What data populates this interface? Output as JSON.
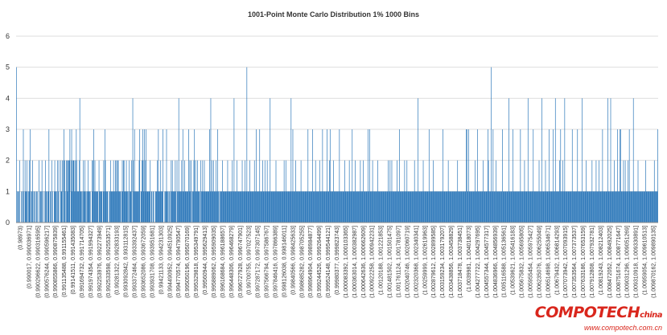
{
  "chart_data": {
    "type": "bar",
    "title": "1001-Point Monte Carlo Distribution 1% 1000 Bins",
    "xlabel": "",
    "ylabel": "",
    "ylim": [
      0,
      6
    ],
    "yticks": [
      0,
      1,
      2,
      3,
      4,
      5,
      6
    ],
    "grid": true,
    "legend": "none",
    "bar_color": "#1f6fb5",
    "bins": 1000,
    "xtick_labels": [
      "(0.98973)",
      "(0.990017, 0.990036971]",
      "(0.990296622, 0.990316595]",
      "(0.990576244, 0.990596217]",
      "(0.990855866, 0.990875839]",
      "(0.991135488, 0.991155461]",
      "(0.99141511, 0.991435083]",
      "(0.991694732, 0.991714705]",
      "(0.991974354, 0.991994327]",
      "(0.992253976, 0.992273949]",
      "(0.992533598, 0.992553571]",
      "(0.99281322, 0.992833193]",
      "(0.993092842, 0.993112815]",
      "(0.993372464, 0.993392437]",
      "(0.993652086, 0.993672059]",
      "(0.993931708, 0.993951681]",
      "(0.99421133, 0.994231303]",
      "(0.994490952, 0.994510925]",
      "(0.994770574, 0.994790547]",
      "(0.995050196, 0.995070169]",
      "(0.995329818, 0.995349791]",
      "(0.99560944, 0.995629413]",
      "(0.995889062, 0.995909035]",
      "(0.996168684, 0.996188657]",
      "(0.996448306, 0.996468279]",
      "(0.996727928, 0.996747901]",
      "(0.99700755, 0.997027523]",
      "(0.997287172, 0.997307145]",
      "(0.997566794, 0.997586767]",
      "(0.997846416, 0.997866389]",
      "(0.998126038, 0.998146011]",
      "(0.99840566, 0.998425633]",
      "(0.998685282, 0.998705255]",
      "(0.998964904, 0.998984877]",
      "(0.999244526, 0.999264499]",
      "(0.999524148, 0.999544121]",
      "(0.99980377, 0.999823743]",
      "(1.000083392, 1.000103365]",
      "(1.000363014, 1.000382987]",
      "(1.000642636, 1.000662609]",
      "(1.000922258, 1.000942231]",
      "(1.00120188, 1.001221853]",
      "(1.001481502, 1.001501475]",
      "(1.001761124, 1.001781097]",
      "(1.002040746, 1.002060719]",
      "(1.002320368, 1.002340341]",
      "(1.00259999, 1.002619963]",
      "(1.002879612, 1.002899585]",
      "(1.003159234, 1.003179207]",
      "(1.003438856, 1.003458829]",
      "(1.003718478, 1.003738451]",
      "(1.0039981, 1.004018073]",
      "(1.004277722, 1.004297695]",
      "(1.004557344, 1.004577317]",
      "(1.004836966, 1.004856939]",
      "(1.005116588, 1.005136561]",
      "(1.00539621, 1.005416183]",
      "(1.005675832, 1.005695805]",
      "(1.005955454, 1.005975427]",
      "(1.006235076, 1.006255049]",
      "(1.006514698, 1.006534671]",
      "(1.00679432, 1.006814293]",
      "(1.007073942, 1.007093915]",
      "(1.007353564, 1.007373537]",
      "(1.007633186, 1.007653159]",
      "(1.007912808, 1.007932781]",
      "(1.00819243, 1.008212403]",
      "(1.008472052, 1.008492025]",
      "(1.008751674, 1.008771647]",
      "(1.009031296, 1.009051269]",
      "(1.009310918, 1.009330891]",
      "(1.00959054, 1.009610513]",
      "(1.009870162, 1.009890135]"
    ],
    "counts": [
      5,
      0,
      1,
      1,
      1,
      0,
      2,
      0,
      0,
      1,
      1,
      0,
      3,
      1,
      0,
      2,
      1,
      1,
      2,
      1,
      0,
      1,
      2,
      1,
      3,
      0,
      1,
      1,
      2,
      0,
      1,
      1,
      0,
      1,
      0,
      1,
      1,
      0,
      0,
      2,
      0,
      1,
      1,
      1,
      2,
      0,
      1,
      0,
      0,
      1,
      2,
      1,
      1,
      0,
      1,
      1,
      3,
      0,
      1,
      1,
      0,
      2,
      1,
      0,
      0,
      1,
      2,
      1,
      1,
      1,
      0,
      2,
      1,
      2,
      0,
      0,
      2,
      1,
      1,
      2,
      0,
      2,
      3,
      2,
      1,
      0,
      2,
      2,
      1,
      2,
      2,
      2,
      3,
      0,
      2,
      3,
      1,
      2,
      2,
      2,
      1,
      2,
      1,
      3,
      2,
      1,
      1,
      1,
      2,
      4,
      1,
      1,
      1,
      0,
      1,
      2,
      1,
      1,
      2,
      1,
      0,
      1,
      1,
      2,
      1,
      1,
      1,
      1,
      0,
      0,
      2,
      1,
      2,
      3,
      1,
      2,
      1,
      1,
      1,
      1,
      1,
      0,
      2,
      1,
      1,
      1,
      1,
      1,
      0,
      1,
      2,
      1,
      3,
      2,
      1,
      1,
      1,
      1,
      0,
      0,
      1,
      1,
      2,
      1,
      1,
      1,
      1,
      2,
      1,
      1,
      2,
      1,
      2,
      1,
      2,
      2,
      1,
      1,
      1,
      1,
      0,
      1,
      2,
      1,
      2,
      2,
      1,
      1,
      1,
      2,
      1,
      1,
      1,
      0,
      2,
      1,
      1,
      1,
      2,
      0,
      4,
      2,
      1,
      3,
      1,
      1,
      1,
      1,
      1,
      1,
      1,
      2,
      3,
      0,
      1,
      1,
      2,
      3,
      2,
      1,
      3,
      1,
      2,
      3,
      1,
      1,
      1,
      1,
      1,
      1,
      2,
      0,
      1,
      1,
      0,
      1,
      1,
      0,
      0,
      1,
      1,
      1,
      2,
      1,
      3,
      1,
      1,
      1,
      2,
      1,
      1,
      1,
      3,
      0,
      0,
      1,
      1,
      1,
      3,
      1,
      1,
      0,
      1,
      1,
      0,
      1,
      2,
      1,
      2,
      1,
      1,
      1,
      1,
      2,
      1,
      0,
      2,
      1,
      1,
      4,
      1,
      1,
      1,
      1,
      2,
      1,
      3,
      1,
      1,
      2,
      1,
      1,
      1,
      1,
      1,
      1,
      3,
      1,
      2,
      1,
      2,
      0,
      1,
      1,
      1,
      2,
      3,
      1,
      2,
      1,
      1,
      2,
      1,
      1,
      1,
      1,
      0,
      2,
      1,
      1,
      2,
      1,
      1,
      2,
      1,
      1,
      1,
      1,
      1,
      1,
      1,
      1,
      3,
      1,
      4,
      1,
      2,
      1,
      1,
      2,
      1,
      1,
      1,
      2,
      1,
      1,
      3,
      1,
      1,
      0,
      1,
      1,
      1,
      1,
      2,
      1,
      1,
      1,
      1,
      1,
      1,
      1,
      1,
      2,
      1,
      1,
      1,
      1,
      1,
      1,
      1,
      2,
      1,
      1,
      4,
      1,
      1,
      1,
      1,
      2,
      1,
      1,
      1,
      1,
      1,
      1,
      1,
      1,
      2,
      1,
      1,
      1,
      1,
      2,
      1,
      1,
      5,
      1,
      1,
      1,
      1,
      2,
      1,
      1,
      1,
      1,
      1,
      1,
      1,
      2,
      1,
      1,
      3,
      1,
      1,
      1,
      1,
      1,
      3,
      1,
      1,
      1,
      1,
      2,
      1,
      1,
      1,
      2,
      1,
      1,
      1,
      2,
      1,
      1,
      1,
      1,
      4,
      1,
      1,
      1,
      1,
      1,
      1,
      1,
      1,
      1,
      2,
      1,
      1,
      1,
      1,
      1,
      1,
      1,
      1,
      1,
      1,
      1,
      1,
      1,
      2,
      1,
      1,
      2,
      1,
      1,
      1,
      1,
      1,
      1,
      1,
      1,
      4,
      1,
      1,
      3,
      1,
      1,
      1,
      1,
      2,
      1,
      1,
      1,
      1,
      1,
      1,
      1,
      1,
      2,
      1,
      1,
      1,
      1,
      1,
      1,
      1,
      1,
      1,
      1,
      1,
      3,
      1,
      1,
      1,
      1,
      1,
      1,
      1,
      3,
      1,
      1,
      1,
      1,
      2,
      1,
      1,
      1,
      1,
      1,
      1,
      2,
      1,
      1,
      1,
      1,
      3,
      1,
      1,
      1,
      1,
      1,
      1,
      1,
      3,
      1,
      1,
      1,
      2,
      3,
      1,
      1,
      1,
      1,
      1,
      2,
      1,
      1,
      1,
      1,
      1,
      1,
      1,
      1,
      1,
      3,
      1,
      1,
      1,
      1,
      1,
      1,
      1,
      1,
      2,
      1,
      1,
      1,
      1,
      1,
      1,
      1,
      2,
      1,
      1,
      1,
      1,
      3,
      1,
      1,
      1,
      1,
      2,
      1,
      1,
      1,
      1,
      1,
      1,
      1,
      1,
      2,
      1,
      1,
      1,
      1,
      2,
      1,
      1,
      1,
      1,
      1,
      1,
      1,
      3,
      1,
      1,
      3,
      1,
      1,
      1,
      1,
      2,
      1,
      1,
      1,
      1,
      1,
      1,
      1,
      1,
      2,
      1,
      1,
      1,
      1,
      1,
      1,
      1,
      1,
      1,
      1,
      1,
      1,
      1,
      1,
      1,
      1,
      1,
      2,
      1,
      1,
      2,
      1,
      1,
      2,
      1,
      1,
      1,
      1,
      1,
      1,
      1,
      1,
      2,
      1,
      1,
      1,
      3,
      1,
      1,
      1,
      1,
      1,
      1,
      1,
      1,
      2,
      1,
      1,
      1,
      2,
      1,
      1,
      1,
      1,
      1,
      1,
      1,
      1,
      1,
      1,
      1,
      1,
      2,
      1,
      1,
      1,
      1,
      1,
      4,
      1,
      1,
      1,
      1,
      1,
      1,
      1,
      1,
      2,
      1,
      1,
      1,
      1,
      1,
      1,
      1,
      1,
      1,
      3,
      1,
      1,
      1,
      1,
      1,
      1,
      2,
      1,
      1,
      1,
      1,
      1,
      1,
      1,
      1,
      1,
      1,
      1,
      1,
      1,
      1,
      1,
      1,
      3,
      1,
      1,
      1,
      1,
      1,
      1,
      1,
      1,
      2,
      1,
      1,
      1,
      1,
      1,
      1,
      1,
      1,
      1,
      1,
      1,
      1,
      1,
      1,
      1,
      2,
      1,
      1,
      1,
      1,
      1,
      1,
      1,
      1,
      1,
      1,
      1,
      1,
      1,
      1,
      3,
      3,
      1,
      1,
      3,
      1,
      1,
      1,
      1,
      1,
      1,
      1,
      1,
      1,
      1,
      2,
      1,
      1,
      1,
      3,
      1,
      1,
      1,
      1,
      1,
      1,
      1,
      1,
      1,
      2,
      1,
      1,
      1,
      1,
      1,
      1,
      1,
      3,
      2,
      1,
      1,
      1,
      1,
      5,
      1,
      1,
      3,
      1,
      1,
      1,
      1,
      2,
      1,
      1,
      1,
      1,
      1,
      1,
      1,
      1,
      1,
      1,
      3,
      1,
      1,
      1,
      1,
      1,
      1,
      1,
      1,
      1,
      1,
      4,
      1,
      1,
      1,
      1,
      1,
      1,
      3,
      1,
      1,
      1,
      1,
      1,
      1,
      1,
      1,
      1,
      1,
      1,
      1,
      3,
      1,
      1,
      1,
      1,
      1,
      1,
      2,
      1,
      1,
      1,
      1,
      1,
      4,
      1,
      1,
      1,
      1,
      1,
      1,
      1,
      1,
      3,
      1,
      1,
      1,
      1,
      1,
      1,
      1,
      1,
      1,
      2,
      1,
      1,
      1,
      1,
      4,
      1,
      1,
      1,
      1,
      1,
      2,
      1,
      1,
      1,
      1,
      1,
      3,
      1,
      1,
      1,
      1,
      1,
      1,
      3,
      1,
      1,
      1,
      4,
      1,
      1,
      1,
      1,
      1,
      1,
      2,
      1,
      3,
      1,
      1,
      1,
      2,
      1,
      1,
      4,
      1,
      1,
      1,
      1,
      1,
      1,
      1,
      1,
      1,
      1,
      1,
      1,
      3,
      1,
      1,
      1,
      1,
      1,
      1,
      1,
      1,
      3,
      1,
      1,
      1,
      1,
      1,
      1,
      1,
      4,
      1,
      1,
      1,
      1,
      1,
      1,
      2,
      1,
      1,
      1,
      1,
      1,
      1,
      1,
      1,
      1,
      2,
      1,
      1,
      1,
      1,
      1,
      1,
      2,
      1,
      1,
      1,
      1,
      2,
      1,
      1,
      1,
      1,
      1,
      3,
      1,
      1,
      1,
      1,
      1,
      1,
      1,
      1,
      4,
      1,
      1,
      1,
      1,
      4,
      1,
      1,
      1,
      1,
      1,
      2,
      1,
      1,
      1,
      1,
      1,
      3,
      1,
      1,
      1,
      3,
      3,
      1,
      1,
      1,
      1,
      2,
      1,
      1,
      2,
      1,
      1,
      1,
      1,
      2,
      1,
      3,
      1,
      1,
      1,
      1,
      1,
      1,
      4,
      1,
      1,
      1,
      1,
      1,
      1,
      1,
      2,
      1,
      1,
      1,
      1,
      1,
      1,
      1,
      1,
      1,
      1,
      1,
      1,
      2,
      1,
      1,
      1,
      1,
      1,
      1,
      1,
      1,
      1,
      1,
      1,
      1,
      1,
      1,
      2,
      1,
      1,
      1,
      1,
      1,
      3
    ]
  },
  "watermark": {
    "brand": "COMPOTECH",
    "brand_suffix": "china",
    "url": "www.compotech.com.cn"
  }
}
